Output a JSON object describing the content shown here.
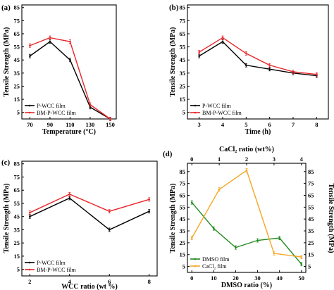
{
  "panels": {
    "a": {
      "label": "(a)"
    },
    "b": {
      "label": "(b)"
    },
    "c": {
      "label": "(c)"
    },
    "d": {
      "label": "(d)"
    }
  },
  "colors": {
    "black": "#000000",
    "red": "#e8262a",
    "green": "#1f8a1f",
    "orange": "#f5a623"
  },
  "chart_data": [
    {
      "id": "a",
      "type": "line",
      "xlabel": "Temperature (°C)",
      "ylabel": "Tensile Strength (MPa)",
      "x": [
        70,
        90,
        110,
        130,
        150
      ],
      "xticks": [
        70,
        90,
        110,
        130,
        150
      ],
      "yticks": [
        5,
        15,
        25,
        35,
        45,
        55,
        65,
        75,
        85
      ],
      "xlim": [
        62,
        156
      ],
      "ylim": [
        0,
        87
      ],
      "series": [
        {
          "name": "P-WCC film",
          "color": "#000000",
          "values": [
            48,
            59,
            45,
            9,
            0
          ]
        },
        {
          "name": "BM-P-WCC film",
          "color": "#e8262a",
          "values": [
            56,
            62,
            59,
            11,
            0
          ]
        }
      ],
      "legend": "bottom-left"
    },
    {
      "id": "b",
      "type": "line",
      "xlabel": "Time (h)",
      "ylabel": "Tensile Strength (MPa)",
      "x": [
        3,
        4,
        5,
        6,
        7,
        8
      ],
      "xticks": [
        3,
        4,
        5,
        6,
        7,
        8
      ],
      "yticks": [
        5,
        15,
        25,
        35,
        45,
        55,
        65,
        75,
        85
      ],
      "xlim": [
        2.5,
        8.5
      ],
      "ylim": [
        0,
        87
      ],
      "series": [
        {
          "name": "P-WCC film",
          "color": "#000000",
          "values": [
            48,
            59,
            41,
            38,
            35,
            33
          ]
        },
        {
          "name": "BM-P-WCC film",
          "color": "#e8262a",
          "values": [
            51,
            62,
            50,
            41,
            36,
            34
          ]
        }
      ],
      "legend": "bottom-left"
    },
    {
      "id": "c",
      "type": "line",
      "xlabel": "WCC ratio (wt %)",
      "ylabel": "Tensile Strength (MPa)",
      "x": [
        2,
        4,
        6,
        8
      ],
      "xticks": [
        2,
        4,
        6,
        8
      ],
      "yticks": [
        5,
        15,
        25,
        35,
        45,
        55,
        65,
        75,
        85
      ],
      "xlim": [
        1.6,
        8.4
      ],
      "ylim": [
        0,
        87
      ],
      "series": [
        {
          "name": "P-WCC film",
          "color": "#000000",
          "values": [
            45,
            59,
            35,
            49
          ]
        },
        {
          "name": "BM-P-WCC film",
          "color": "#e8262a",
          "values": [
            48,
            62,
            49,
            58
          ]
        }
      ],
      "legend": "bottom-left"
    },
    {
      "id": "d",
      "type": "line",
      "xlabel": "DMSO ratio (%)",
      "xlabel_top": "CaCl₂ ratio (wt%)",
      "ylabel_left": "Tensile Strength (MPa)",
      "ylabel_right": "Tensile Strength (MPa)",
      "xticks": [
        0,
        10,
        20,
        30,
        40,
        50
      ],
      "xticks_top": [
        0,
        1,
        2,
        3,
        4
      ],
      "yticks": [
        5,
        15,
        25,
        35,
        45,
        55,
        65,
        75,
        85
      ],
      "xlim": [
        -2,
        52
      ],
      "xlim_top": [
        -0.16,
        4.16
      ],
      "ylim": [
        0,
        92
      ],
      "series": [
        {
          "name": "DMSO film",
          "color": "#1f8a1f",
          "axis": "bottom",
          "x": [
            0,
            10,
            20,
            30,
            40,
            50
          ],
          "values": [
            59,
            37,
            21,
            27,
            29,
            7
          ]
        },
        {
          "name": "CaCl₂ film",
          "color": "#f5a623",
          "axis": "top",
          "x": [
            0,
            1,
            2,
            3,
            4
          ],
          "values": [
            29,
            70,
            86,
            16,
            13
          ]
        }
      ],
      "legend": "bottom-left"
    }
  ]
}
